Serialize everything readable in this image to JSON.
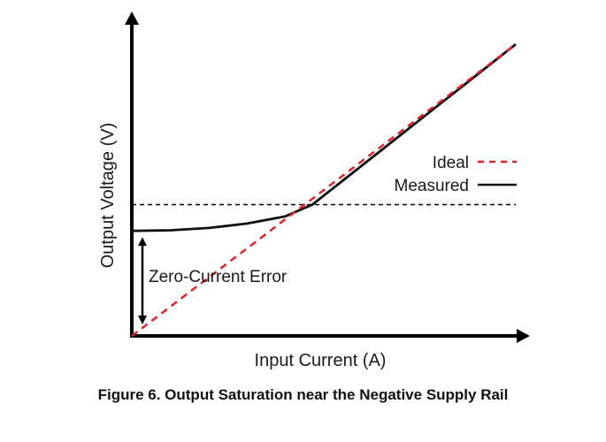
{
  "caption": "Figure 6. Output Saturation near the Negative Supply Rail",
  "chart_data": {
    "type": "line",
    "title": "",
    "xlabel": "Input Current (A)",
    "ylabel": "Output Voltage (V)",
    "xlim": [
      0,
      1
    ],
    "ylim": [
      0,
      1
    ],
    "grid": false,
    "legend_position": "right",
    "colors": {
      "ideal": "#e8202a",
      "measured": "#111111",
      "axis": "#000000"
    },
    "series": [
      {
        "name": "Ideal",
        "style": "dashed",
        "x": [
          0,
          1
        ],
        "y": [
          0,
          1
        ]
      },
      {
        "name": "Measured",
        "style": "solid",
        "x": [
          0,
          0.1,
          0.2,
          0.3,
          0.4,
          0.47,
          1
        ],
        "y": [
          0.36,
          0.362,
          0.37,
          0.385,
          0.41,
          0.45,
          1
        ]
      }
    ],
    "reference_line": {
      "y": 0.45,
      "style": "dashed"
    },
    "annotations": [
      {
        "text": "Zero-Current Error",
        "type": "double-arrow",
        "x": 0.03,
        "y_from": 0.0,
        "y_to": 0.36
      }
    ]
  }
}
